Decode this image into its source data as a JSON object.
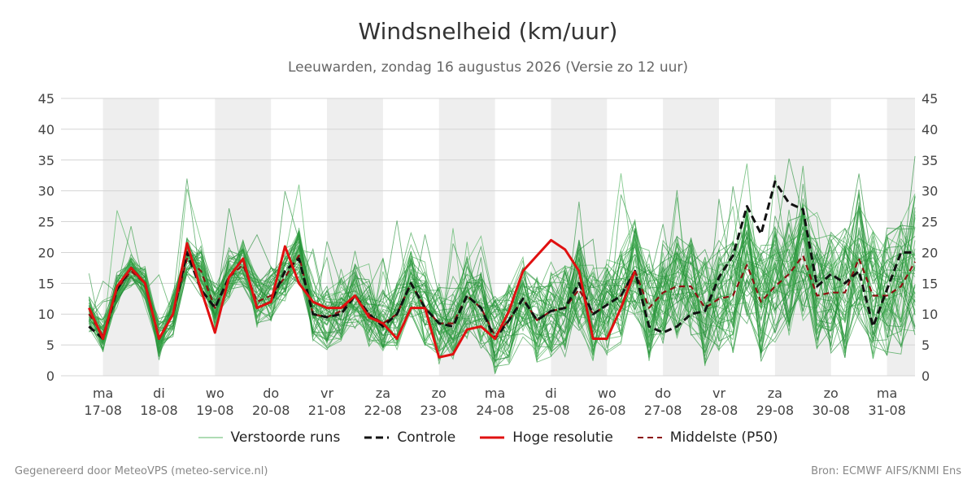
{
  "header": {
    "title": "Windsnelheid (km/uur)",
    "subtitle": "Leeuwarden, zondag 16 augustus 2026 (Versie zo 12 uur)"
  },
  "footer": {
    "left": "Gegenereerd door MeteoVPS (meteo-service.nl)",
    "right": "Bron: ECMWF AIFS/KNMI Ens"
  },
  "legend": {
    "items": [
      {
        "label": "Verstoorde runs",
        "color": "#2e9b3e",
        "style": "thin"
      },
      {
        "label": "Controle",
        "color": "#111111",
        "style": "dashed"
      },
      {
        "label": "Hoge resolutie",
        "color": "#e01010",
        "style": "solid"
      },
      {
        "label": "Middelste (P50)",
        "color": "#8b1010",
        "style": "dashed"
      }
    ]
  },
  "chart_data": {
    "type": "line",
    "xlabel": "",
    "ylabel": "",
    "ylim": [
      0,
      45
    ],
    "yticks": [
      0,
      5,
      10,
      15,
      20,
      25,
      30,
      35,
      40,
      45
    ],
    "y_axis_both_sides": true,
    "grid": "horizontal",
    "legend_position": "bottom",
    "x_unit": "days since 17-08 00:00",
    "xlim": [
      -0.75,
      14.5
    ],
    "day_ticks": [
      {
        "day": "ma",
        "date": "17-08"
      },
      {
        "day": "di",
        "date": "18-08"
      },
      {
        "day": "wo",
        "date": "19-08"
      },
      {
        "day": "do",
        "date": "20-08"
      },
      {
        "day": "vr",
        "date": "21-08"
      },
      {
        "day": "za",
        "date": "22-08"
      },
      {
        "day": "zo",
        "date": "23-08"
      },
      {
        "day": "ma",
        "date": "24-08"
      },
      {
        "day": "di",
        "date": "25-08"
      },
      {
        "day": "wo",
        "date": "26-08"
      },
      {
        "day": "do",
        "date": "27-08"
      },
      {
        "day": "vr",
        "date": "28-08"
      },
      {
        "day": "za",
        "date": "29-08"
      },
      {
        "day": "zo",
        "date": "30-08"
      },
      {
        "day": "ma",
        "date": "31-08"
      }
    ],
    "night_bands": [
      [
        0,
        1
      ],
      [
        2,
        3
      ],
      [
        4,
        5
      ],
      [
        6,
        7
      ],
      [
        8,
        9
      ],
      [
        10,
        11
      ],
      [
        12,
        13
      ],
      [
        14,
        14.5
      ]
    ],
    "series": [
      {
        "name": "Hoge resolutie",
        "color": "#e01010",
        "style": "solid",
        "x": [
          -0.25,
          0,
          0.25,
          0.5,
          0.75,
          1,
          1.25,
          1.5,
          1.75,
          2,
          2.25,
          2.5,
          2.75,
          3,
          3.25,
          3.5,
          3.75,
          4,
          4.25,
          4.5,
          4.75,
          5,
          5.25,
          5.5,
          5.75,
          6,
          6.25,
          6.5,
          6.75,
          7,
          7.25,
          7.5,
          7.75,
          8,
          8.25,
          8.5,
          8.75,
          9,
          9.25,
          9.5,
          9.75
        ],
        "values": [
          11,
          6,
          14.5,
          17.5,
          15,
          6,
          10,
          21.5,
          14,
          7,
          16,
          19,
          11,
          12,
          21,
          15,
          12,
          11,
          11,
          13,
          9.5,
          8.5,
          6,
          11,
          11,
          3,
          3.5,
          7.5,
          8,
          6,
          10.5,
          17,
          19.5,
          22,
          20.5,
          17,
          6,
          6,
          11,
          17,
          null
        ]
      },
      {
        "name": "Controle",
        "color": "#111111",
        "style": "dashed",
        "x": [
          -0.25,
          0,
          0.25,
          0.5,
          0.75,
          1,
          1.25,
          1.5,
          1.75,
          2,
          2.25,
          2.5,
          2.75,
          3,
          3.25,
          3.5,
          3.75,
          4,
          4.25,
          4.5,
          4.75,
          5,
          5.25,
          5.5,
          5.75,
          6,
          6.25,
          6.5,
          6.75,
          7,
          7.25,
          7.5,
          7.75,
          8,
          8.25,
          8.5,
          8.75,
          9,
          9.25,
          9.5,
          9.75,
          10,
          10.25,
          10.5,
          10.75,
          11,
          11.25,
          11.5,
          11.75,
          12,
          12.25,
          12.5,
          12.75,
          13,
          13.25,
          13.5,
          13.75,
          14,
          14.25,
          14.5
        ],
        "values": [
          8,
          6,
          14,
          17.5,
          15,
          6,
          10,
          20,
          14,
          11,
          16,
          19,
          11,
          12,
          17,
          19,
          10,
          9.5,
          10,
          13,
          10,
          8,
          10,
          15,
          11,
          8.5,
          8,
          13,
          11,
          6,
          9,
          12.5,
          9,
          10.5,
          11,
          15,
          10,
          11.5,
          13,
          17,
          8,
          7,
          8,
          10,
          10.5,
          16,
          19.5,
          27.5,
          23,
          31.5,
          28,
          27,
          14.5,
          16.5,
          15,
          17,
          8,
          14,
          20,
          20
        ]
      },
      {
        "name": "Middelste (P50)",
        "color": "#8b1010",
        "style": "dashed",
        "x": [
          -0.25,
          0,
          0.25,
          0.5,
          0.75,
          1,
          1.25,
          1.5,
          1.75,
          2,
          2.25,
          2.5,
          2.75,
          3,
          3.25,
          3.5,
          3.75,
          4,
          4.25,
          4.5,
          4.75,
          5,
          5.25,
          5.5,
          5.75,
          6,
          6.25,
          6.5,
          6.75,
          7,
          7.25,
          7.5,
          7.75,
          8,
          8.25,
          8.5,
          8.75,
          9,
          9.25,
          9.5,
          9.75,
          10,
          10.25,
          10.5,
          10.75,
          11,
          11.25,
          11.5,
          11.75,
          12,
          12.25,
          12.5,
          12.75,
          13,
          13.25,
          13.5,
          13.75,
          14,
          14.25,
          14.5
        ],
        "values": [
          10,
          6.5,
          14,
          17,
          15,
          6,
          10,
          19,
          17,
          11,
          16,
          18,
          12,
          13,
          16,
          19.5,
          10,
          9.5,
          10.5,
          13,
          10,
          8.5,
          10,
          15,
          11,
          8.5,
          8.5,
          13,
          11,
          6.5,
          9,
          12.5,
          9,
          10.5,
          11,
          14,
          10,
          11.5,
          13,
          17,
          11,
          13.5,
          14.5,
          14.5,
          11,
          12.5,
          13,
          18,
          12,
          14.5,
          16.5,
          19.5,
          13,
          13.5,
          13.5,
          19,
          13,
          13,
          14.5,
          18.5
        ]
      }
    ]
  }
}
